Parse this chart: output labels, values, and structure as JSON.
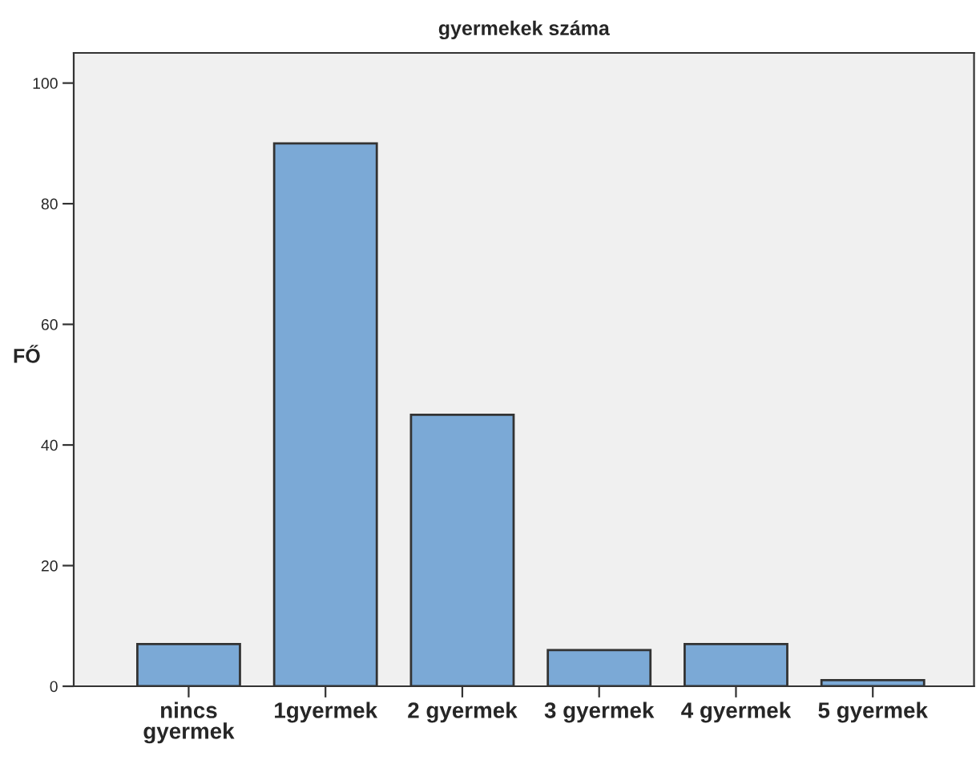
{
  "chart_data": {
    "type": "bar",
    "title": "gyermekek száma",
    "ylabel": "FŐ",
    "categories": [
      "nincs\ngyermek",
      "1gyermek",
      "2 gyermek",
      "3 gyermek",
      "4 gyermek",
      "5 gyermek"
    ],
    "values": [
      7,
      90,
      45,
      6,
      7,
      1
    ],
    "color": "#7ba9d6",
    "ylim": [
      0,
      105
    ],
    "yticks": [
      0,
      20,
      40,
      60,
      80,
      100
    ],
    "grid": false,
    "legend": false
  }
}
